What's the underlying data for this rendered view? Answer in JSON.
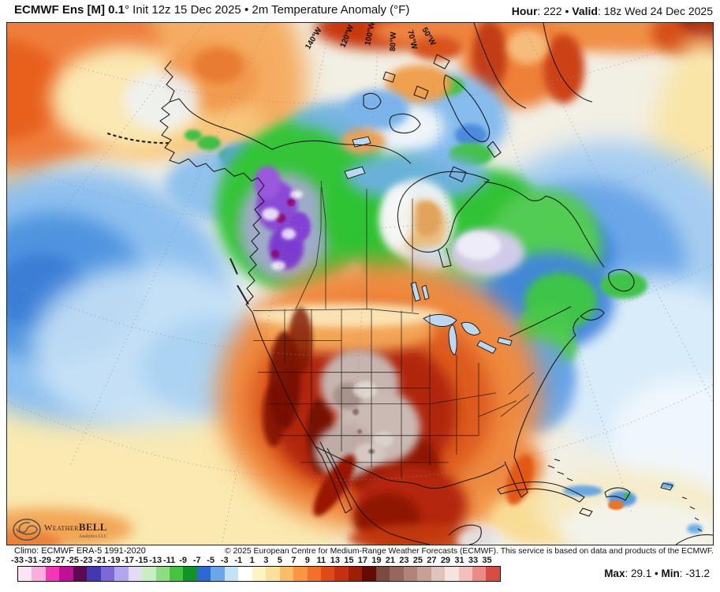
{
  "header": {
    "model_bold": "ECMWF Ens [M] 0.1",
    "model_rest": "° Init 12z 15 Dec 2025 • 2m Temperature Anomaly (°F)",
    "hour_label": "Hour",
    "hour_value": ": 222",
    "separator": " • ",
    "valid_label": "Valid",
    "valid_value": ": 18z Wed 24 Dec 2025"
  },
  "map": {
    "description": "2m temperature anomaly map of North America",
    "longitude_labels": [
      "140°W",
      "120°W",
      "100°W",
      "80°W",
      "70°W",
      "50°W"
    ],
    "logo": {
      "weather": "Weather",
      "bell": "BELL",
      "subtext": "Analytics LLC"
    }
  },
  "footer": {
    "climo": "Climo: ECMWF ERA-5 1991-2020",
    "copyright": "© 2025 European Centre for Medium-Range Weather Forecasts (ECMWF). This service is based on data and products of the ECMWF.",
    "max_label": "Max",
    "max_value": ": 29.1",
    "separator": " • ",
    "min_label": "Min",
    "min_value": ": -31.2"
  },
  "colorbar": {
    "unit": "°F",
    "tick_labels": [
      "-33",
      "-31",
      "-29",
      "-27",
      "-25",
      "-23",
      "-21",
      "-19",
      "-17",
      "-15",
      "-13",
      "-11",
      "-9",
      "-7",
      "-5",
      "-3",
      "-1",
      "1",
      "3",
      "5",
      "7",
      "9",
      "11",
      "13",
      "15",
      "17",
      "19",
      "21",
      "23",
      "25",
      "27",
      "29",
      "31",
      "33",
      "35"
    ],
    "segments": [
      {
        "range": "-33 to -31",
        "color": "#fce4f2"
      },
      {
        "range": "-31 to -29",
        "color": "#f9aede"
      },
      {
        "range": "-29 to -27",
        "color": "#f138b8"
      },
      {
        "range": "-27 to -25",
        "color": "#c01098"
      },
      {
        "range": "-25 to -23",
        "color": "#5c0a56"
      },
      {
        "range": "-23 to -21",
        "color": "#4238b2"
      },
      {
        "range": "-21 to -19",
        "color": "#7c68d8"
      },
      {
        "range": "-19 to -17",
        "color": "#b4a6ee"
      },
      {
        "range": "-17 to -15",
        "color": "#e2dcf8"
      },
      {
        "range": "-15 to -13",
        "color": "#c9eec1"
      },
      {
        "range": "-13 to -11",
        "color": "#8edc81"
      },
      {
        "range": "-11 to -9",
        "color": "#47c33f"
      },
      {
        "range": "-9 to -7",
        "color": "#129327"
      },
      {
        "range": "-7 to -5",
        "color": "#2e68d2"
      },
      {
        "range": "-5 to -3",
        "color": "#6ba6e8"
      },
      {
        "range": "-3 to -1",
        "color": "#c2e2f8"
      },
      {
        "range": "-1 to 1",
        "color": "#ffffff"
      },
      {
        "range": "1 to 3",
        "color": "#fdf4c4"
      },
      {
        "range": "3 to 5",
        "color": "#fce09b"
      },
      {
        "range": "5 to 7",
        "color": "#fbbc6a"
      },
      {
        "range": "7 to 9",
        "color": "#f89643"
      },
      {
        "range": "9 to 11",
        "color": "#f1702a"
      },
      {
        "range": "11 to 13",
        "color": "#df4a16"
      },
      {
        "range": "13 to 15",
        "color": "#c5300e"
      },
      {
        "range": "15 to 17",
        "color": "#a01d08"
      },
      {
        "range": "17 to 19",
        "color": "#640c03"
      },
      {
        "range": "19 to 21",
        "color": "#7d4a40"
      },
      {
        "range": "21 to 23",
        "color": "#97675c"
      },
      {
        "range": "23 to 25",
        "color": "#b08478"
      },
      {
        "range": "25 to 27",
        "color": "#c8a196"
      },
      {
        "range": "27 to 29",
        "color": "#e0c3ba"
      },
      {
        "range": "29 to 31",
        "color": "#f4e4de"
      },
      {
        "range": "31 to 33",
        "color": "#f5c0bc"
      },
      {
        "range": "33 to 35",
        "color": "#ec8a84"
      },
      {
        "range": "35 to 37",
        "color": "#d94c42"
      }
    ]
  }
}
